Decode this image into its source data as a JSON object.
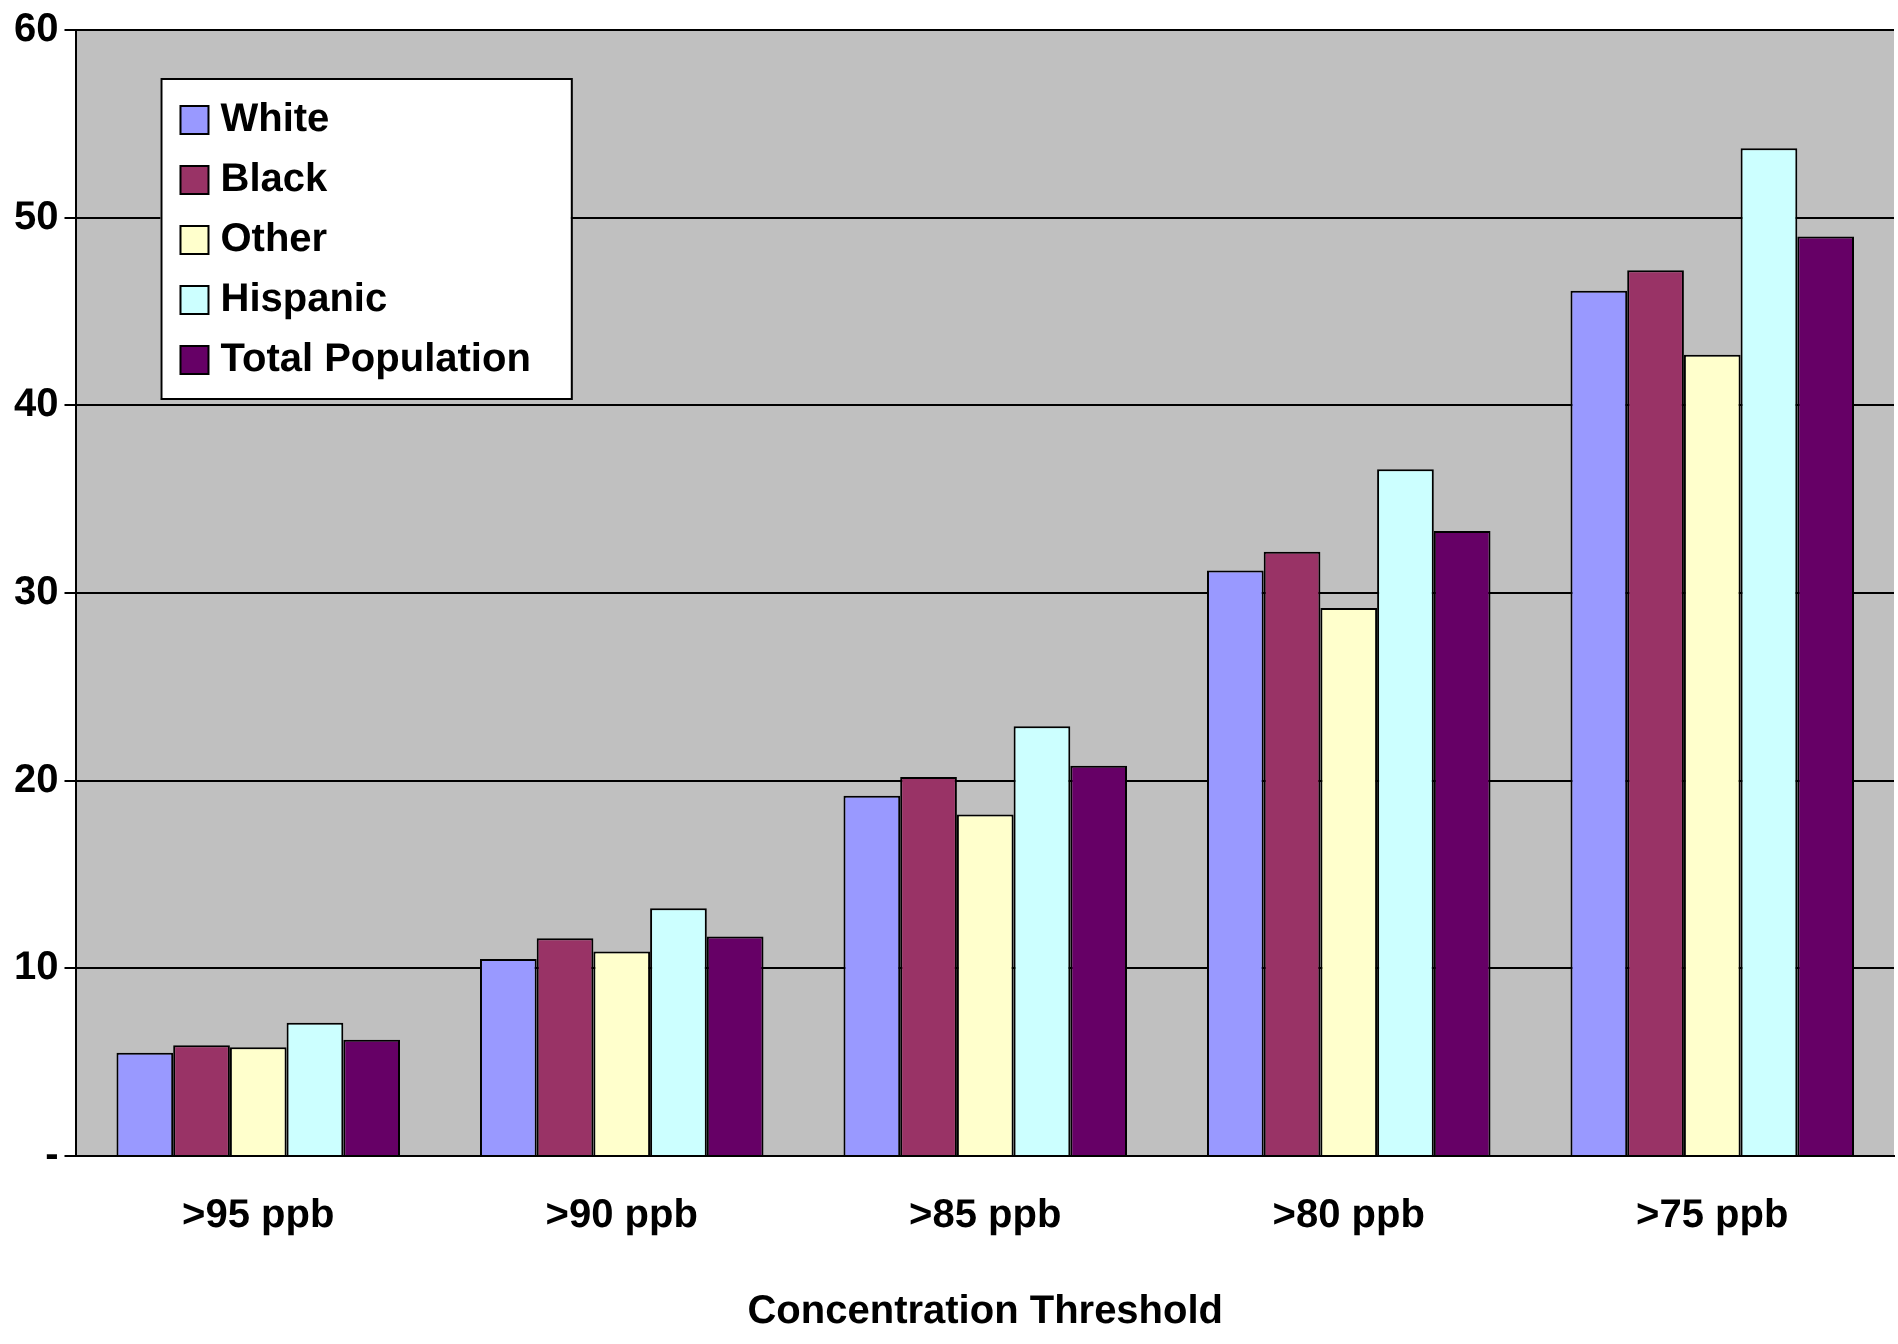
{
  "chart_data": {
    "type": "bar",
    "xlabel": "Concentration Threshold",
    "categories": [
      ">95 ppb",
      ">90 ppb",
      ">85 ppb",
      ">80 ppb",
      ">75 ppb"
    ],
    "series": [
      {
        "name": "White",
        "color": "#9999ff",
        "values": [
          5.5,
          10.5,
          19.2,
          31.2,
          46.1
        ]
      },
      {
        "name": "Black",
        "color": "#993366",
        "values": [
          5.9,
          11.6,
          20.2,
          32.2,
          47.2
        ]
      },
      {
        "name": "Other",
        "color": "#ffffcc",
        "values": [
          5.8,
          10.9,
          18.2,
          29.2,
          42.7
        ]
      },
      {
        "name": "Hispanic",
        "color": "#ccffff",
        "values": [
          7.1,
          13.2,
          22.9,
          36.6,
          53.7
        ]
      },
      {
        "name": "Total Population",
        "color": "#660066",
        "values": [
          6.2,
          11.7,
          20.8,
          33.3,
          49.0
        ]
      }
    ],
    "ylim": [
      0,
      60
    ],
    "yticks": [
      {
        "value": 0,
        "label": "-"
      },
      10,
      20,
      30,
      40,
      50,
      60
    ],
    "grid": "y",
    "legend": "top left"
  }
}
